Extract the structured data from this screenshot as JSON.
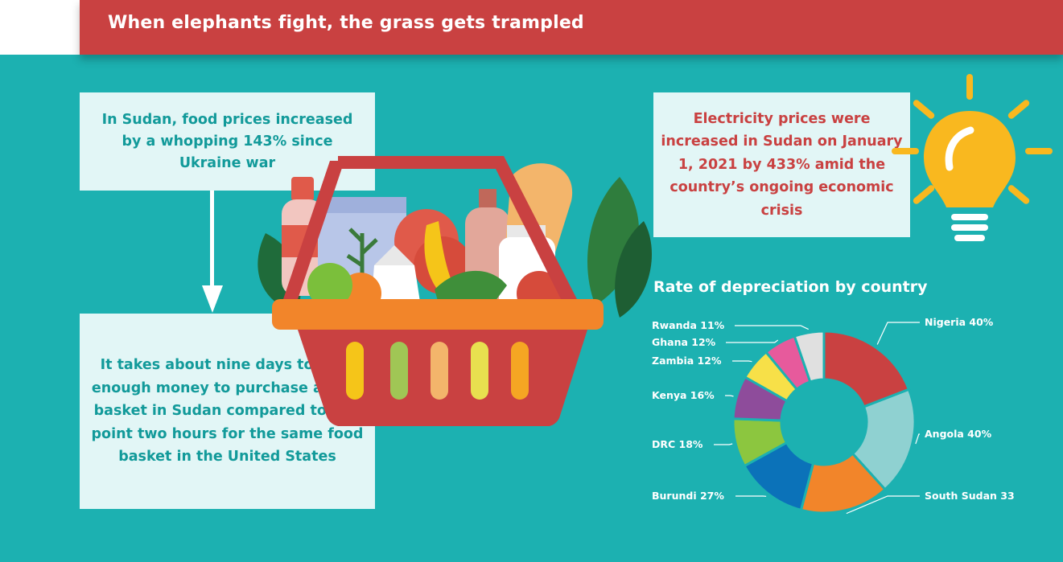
{
  "banner": {
    "title": "When elephants fight, the grass gets trampled"
  },
  "cards": {
    "food_prices": "In Sudan, food prices increased by a whopping 143% since Ukraine war",
    "food_basket": "It takes about nine days to earn enough money to purchase a food basket in Sudan compared to one point two hours for the same food basket in the United States",
    "electricity": "Electricity prices were increased in Sudan on January 1, 2021 by 433% amid the country’s ongoing economic crisis"
  },
  "colors": {
    "background": "#1cb1b1",
    "banner": "#c94141",
    "card": "#e2f6f6",
    "teal_text": "#129a9a",
    "red_text": "#c94141"
  },
  "icons": [
    "arrow-down-icon",
    "food-basket-icon",
    "light-bulb-icon"
  ],
  "chart_data": {
    "type": "pie",
    "title": "Rate of depreciation by country",
    "donut": true,
    "categories": [
      "Nigeria",
      "Angola",
      "South Sudan",
      "Burundi",
      "DRC",
      "Kenya",
      "Zambia",
      "Ghana",
      "Rwanda"
    ],
    "values": [
      40,
      40,
      33,
      27,
      18,
      16,
      12,
      12,
      11
    ],
    "labels": [
      "Nigeria 40%",
      "Angola 40%",
      "South Sudan 33%",
      "Burundi 27%",
      "DRC 18%",
      "Kenya 16%",
      "Zambia 12%",
      "Ghana 12%",
      "Rwanda 11%"
    ],
    "colors": [
      "#c94141",
      "#8fd1d1",
      "#f2852a",
      "#0b72b9",
      "#8cc63f",
      "#8e4c9b",
      "#f7e048",
      "#e75a9c",
      "#e0e0e0"
    ],
    "legend": "none"
  }
}
